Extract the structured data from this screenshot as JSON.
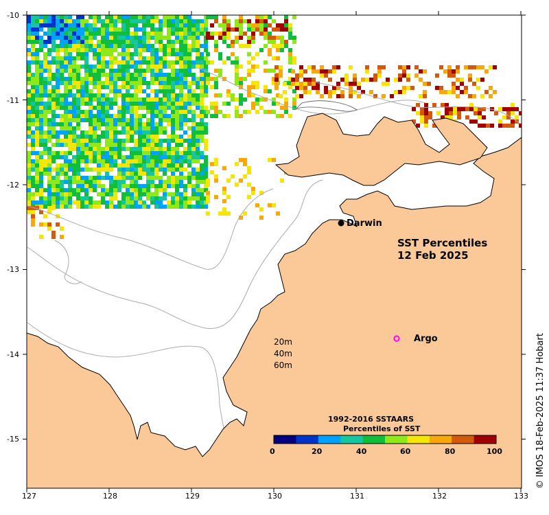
{
  "map": {
    "title": "SST Percentiles",
    "date": "12 Feb 2025",
    "places": {
      "darwin": "Darwin",
      "argo": "Argo"
    },
    "depth_labels": [
      "20m",
      "40m",
      "60m"
    ],
    "x_ticks": [
      "127",
      "128",
      "129",
      "130",
      "131",
      "132",
      "133"
    ],
    "y_ticks": [
      "-10",
      "-11",
      "-12",
      "-13",
      "-14",
      "-15"
    ],
    "credit": "© IMOS 18-Feb-2025 11:37 Hobart",
    "colors": {
      "land": "#fbc898",
      "ocean": "#ffffff",
      "bathymetry": "#aaaaaa",
      "argo_marker": "#ff00ff"
    }
  },
  "colorbar": {
    "title_line1": "1992-2016 SSTAARS",
    "title_line2": "Percentiles of SST",
    "ticks": [
      "0",
      "20",
      "40",
      "60",
      "80",
      "100"
    ],
    "colors": [
      "#00007f",
      "#0033cc",
      "#00a2ff",
      "#16c6a0",
      "#0fbe3a",
      "#8ee81a",
      "#f5e60a",
      "#f8a80a",
      "#d25a0a",
      "#a00000"
    ]
  }
}
